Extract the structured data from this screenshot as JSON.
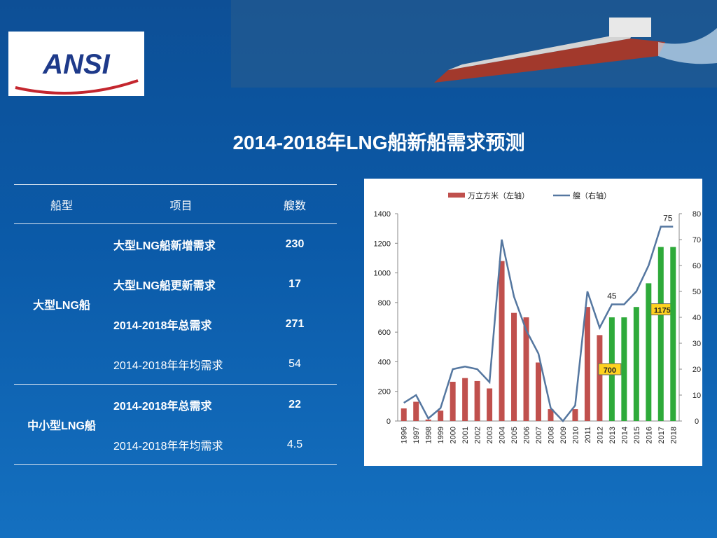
{
  "logo": "ANSI",
  "title": "2014-2018年LNG船新船需求预测",
  "table": {
    "header": [
      "船型",
      "项目",
      "艘数"
    ],
    "groups": [
      {
        "name": "大型LNG船",
        "rows": [
          [
            "大型LNG船新增需求",
            "230"
          ],
          [
            "大型LNG船更新需求",
            "17"
          ],
          [
            "2014-2018年总需求",
            "271"
          ],
          [
            "2014-2018年年均需求",
            "54"
          ]
        ]
      },
      {
        "name": "中小型LNG船",
        "rows": [
          [
            "2014-2018年总需求",
            "22"
          ],
          [
            "2014-2018年年均需求",
            "4.5"
          ]
        ]
      }
    ]
  },
  "chart_data": {
    "type": "bar_line",
    "categories": [
      "1996",
      "1997",
      "1998",
      "1999",
      "2000",
      "2001",
      "2002",
      "2003",
      "2004",
      "2005",
      "2006",
      "2007",
      "2008",
      "2009",
      "2010",
      "2011",
      "2012",
      "2013",
      "2014",
      "2015",
      "2016",
      "2017",
      "2018"
    ],
    "series": [
      {
        "name": "万立方米（左轴）",
        "type": "bar",
        "color": "#c0504d",
        "colors": [
          "#c0504d",
          "#c0504d",
          "#c0504d",
          "#c0504d",
          "#c0504d",
          "#c0504d",
          "#c0504d",
          "#c0504d",
          "#c0504d",
          "#c0504d",
          "#c0504d",
          "#c0504d",
          "#c0504d",
          "#c0504d",
          "#c0504d",
          "#c0504d",
          "#c0504d",
          "#2eaa3a",
          "#2eaa3a",
          "#2eaa3a",
          "#2eaa3a",
          "#2eaa3a",
          "#2eaa3a"
        ],
        "values": [
          85,
          130,
          10,
          70,
          265,
          290,
          270,
          220,
          1080,
          730,
          700,
          395,
          80,
          0,
          80,
          770,
          580,
          700,
          700,
          770,
          930,
          1175,
          1175
        ],
        "value_labels": [
          null,
          null,
          null,
          null,
          null,
          null,
          null,
          null,
          null,
          null,
          null,
          null,
          null,
          null,
          null,
          null,
          null,
          "700",
          null,
          null,
          null,
          "1175",
          null
        ]
      },
      {
        "name": "艘（右轴）",
        "type": "line",
        "axis": "y2",
        "color": "#5577a0",
        "values": [
          7,
          10,
          1,
          5,
          20,
          21,
          20,
          15,
          70,
          48,
          35,
          26,
          5,
          0,
          6,
          50,
          36,
          45,
          45,
          50,
          60,
          75,
          75
        ],
        "value_labels": [
          null,
          null,
          null,
          null,
          null,
          null,
          null,
          null,
          null,
          null,
          null,
          null,
          null,
          null,
          null,
          null,
          null,
          "45",
          null,
          null,
          null,
          "75",
          null
        ]
      }
    ],
    "ylim": [
      0,
      1400
    ],
    "yticks": [
      0,
      200,
      400,
      600,
      800,
      1000,
      1200,
      1400
    ],
    "y2lim": [
      0,
      80
    ],
    "y2ticks": [
      0,
      10,
      20,
      30,
      40,
      50,
      60,
      70,
      80
    ],
    "legend": "top"
  }
}
